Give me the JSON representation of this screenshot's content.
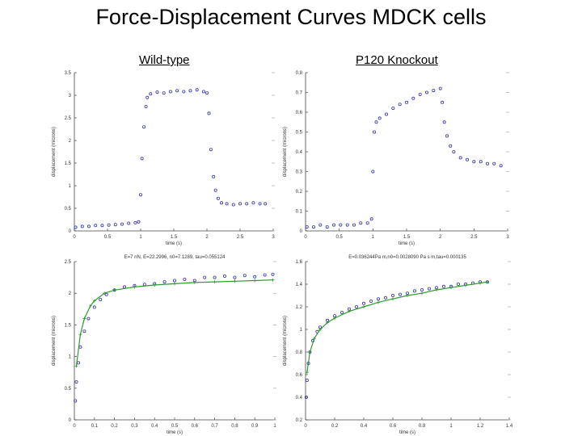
{
  "page": {
    "title": "Force-Displacement Curves MDCK cells",
    "subtitle_left": "Wild-type",
    "subtitle_right": "P120 Knockout"
  },
  "colors": {
    "data_points": "#3333aa",
    "fit_line": "#2e9a2e",
    "axis": "#444444"
  },
  "chart_data": [
    {
      "id": "wt-step",
      "type": "scatter",
      "xlabel": "time (s)",
      "ylabel": "displacement (microns)",
      "title": "",
      "xlim": [
        0,
        3
      ],
      "ylim": [
        0,
        3.5
      ],
      "xticks": [
        "0",
        "0.5",
        "1",
        "1.5",
        "2",
        "2.5",
        "3"
      ],
      "yticks": [
        "0",
        "0.5",
        "1",
        "1.5",
        "2",
        "2.5",
        "3",
        "3.5"
      ],
      "series": [
        {
          "x": [
            0.02,
            0.12,
            0.22,
            0.32,
            0.42,
            0.52,
            0.62,
            0.72,
            0.82,
            0.92,
            0.97,
            1.0,
            1.02,
            1.05,
            1.08,
            1.1,
            1.15,
            1.25,
            1.35,
            1.45,
            1.55,
            1.65,
            1.75,
            1.85,
            1.95,
            2.0,
            2.03,
            2.06,
            2.1,
            2.13,
            2.17,
            2.22,
            2.3,
            2.4,
            2.5,
            2.6,
            2.7,
            2.8,
            2.88
          ],
          "y": [
            0.08,
            0.1,
            0.1,
            0.12,
            0.12,
            0.13,
            0.14,
            0.15,
            0.17,
            0.18,
            0.2,
            0.8,
            1.6,
            2.3,
            2.75,
            2.95,
            3.03,
            3.07,
            3.05,
            3.08,
            3.1,
            3.08,
            3.1,
            3.12,
            3.08,
            3.05,
            2.6,
            1.8,
            1.2,
            0.9,
            0.72,
            0.62,
            0.6,
            0.58,
            0.6,
            0.6,
            0.62,
            0.6,
            0.6
          ]
        }
      ]
    },
    {
      "id": "ko-step",
      "type": "scatter",
      "xlabel": "time (s)",
      "ylabel": "displacement (microns)",
      "title": "",
      "xlim": [
        0,
        3
      ],
      "ylim": [
        0,
        0.8
      ],
      "xticks": [
        "0",
        "0.5",
        "1",
        "1.5",
        "2",
        "2.5",
        "3"
      ],
      "yticks": [
        "0",
        "0.1",
        "0.2",
        "0.3",
        "0.4",
        "0.5",
        "0.6",
        "0.7",
        "0.8"
      ],
      "series": [
        {
          "x": [
            0.02,
            0.12,
            0.22,
            0.32,
            0.42,
            0.52,
            0.62,
            0.72,
            0.82,
            0.92,
            0.98,
            1.0,
            1.02,
            1.05,
            1.1,
            1.2,
            1.3,
            1.4,
            1.5,
            1.6,
            1.7,
            1.8,
            1.9,
            2.0,
            2.03,
            2.06,
            2.1,
            2.15,
            2.2,
            2.3,
            2.4,
            2.5,
            2.6,
            2.7,
            2.8,
            2.9
          ],
          "y": [
            0.02,
            0.02,
            0.03,
            0.02,
            0.03,
            0.03,
            0.03,
            0.03,
            0.04,
            0.04,
            0.06,
            0.3,
            0.5,
            0.55,
            0.57,
            0.59,
            0.62,
            0.64,
            0.65,
            0.67,
            0.69,
            0.7,
            0.71,
            0.72,
            0.65,
            0.55,
            0.48,
            0.43,
            0.4,
            0.37,
            0.36,
            0.35,
            0.35,
            0.34,
            0.34,
            0.33
          ]
        }
      ]
    },
    {
      "id": "wt-fit",
      "type": "scatter",
      "title": "E=7 nN, E=22.2996, n0=7.1289, tau=0.055124",
      "xlabel": "time (s)",
      "ylabel": "displacement (microns)",
      "xlim": [
        0,
        1
      ],
      "ylim": [
        0,
        2.5
      ],
      "xticks": [
        "0",
        "0.1",
        "0.2",
        "0.3",
        "0.4",
        "0.5",
        "0.6",
        "0.7",
        "0.8",
        "0.9",
        "1"
      ],
      "yticks": [
        "0",
        "0.5",
        "1",
        "1.5",
        "2",
        "2.5"
      ],
      "series": [
        {
          "name": "data",
          "x": [
            0.005,
            0.01,
            0.02,
            0.03,
            0.05,
            0.07,
            0.1,
            0.13,
            0.16,
            0.2,
            0.25,
            0.3,
            0.35,
            0.4,
            0.45,
            0.5,
            0.55,
            0.6,
            0.65,
            0.7,
            0.75,
            0.8,
            0.85,
            0.9,
            0.95,
            0.99
          ],
          "y": [
            0.3,
            0.6,
            0.9,
            1.15,
            1.4,
            1.6,
            1.78,
            1.9,
            1.98,
            2.05,
            2.1,
            2.12,
            2.14,
            2.15,
            2.18,
            2.2,
            2.22,
            2.2,
            2.25,
            2.25,
            2.27,
            2.25,
            2.28,
            2.26,
            2.29,
            2.3
          ]
        },
        {
          "name": "fit",
          "x": [
            0.01,
            0.03,
            0.05,
            0.08,
            0.1,
            0.15,
            0.2,
            0.3,
            0.4,
            0.5,
            0.6,
            0.7,
            0.8,
            0.9,
            0.99
          ],
          "y": [
            0.85,
            1.35,
            1.6,
            1.8,
            1.88,
            2.0,
            2.05,
            2.1,
            2.13,
            2.15,
            2.17,
            2.18,
            2.19,
            2.2,
            2.21
          ]
        }
      ]
    },
    {
      "id": "ko-fit",
      "type": "scatter",
      "title": "E=0.036244Pa m,n0=0.0028090 Pa s m,tau=0.000135",
      "xlabel": "time (s)",
      "ylabel": "displacement (microns)",
      "xlim": [
        0,
        1.4
      ],
      "ylim": [
        0.2,
        1.6
      ],
      "xticks": [
        "0",
        "0.2",
        "0.4",
        "0.6",
        "0.8",
        "1",
        "1.2",
        "1.4"
      ],
      "yticks": [
        "0.2",
        "0.4",
        "0.6",
        "0.8",
        "1",
        "1.2",
        "1.4",
        "1.6"
      ],
      "series": [
        {
          "name": "data",
          "x": [
            0.005,
            0.01,
            0.02,
            0.03,
            0.05,
            0.08,
            0.1,
            0.15,
            0.2,
            0.25,
            0.3,
            0.35,
            0.4,
            0.45,
            0.5,
            0.55,
            0.6,
            0.65,
            0.7,
            0.75,
            0.8,
            0.85,
            0.9,
            0.95,
            1.0,
            1.05,
            1.1,
            1.15,
            1.2,
            1.25
          ],
          "y": [
            0.4,
            0.55,
            0.7,
            0.8,
            0.9,
            0.98,
            1.02,
            1.08,
            1.12,
            1.15,
            1.18,
            1.2,
            1.23,
            1.25,
            1.27,
            1.28,
            1.3,
            1.31,
            1.32,
            1.34,
            1.35,
            1.36,
            1.37,
            1.38,
            1.38,
            1.4,
            1.4,
            1.41,
            1.42,
            1.42
          ]
        },
        {
          "name": "fit",
          "x": [
            0.01,
            0.03,
            0.06,
            0.1,
            0.15,
            0.2,
            0.3,
            0.4,
            0.5,
            0.6,
            0.7,
            0.8,
            0.9,
            1.0,
            1.1,
            1.2,
            1.25
          ],
          "y": [
            0.62,
            0.8,
            0.92,
            1.0,
            1.06,
            1.1,
            1.16,
            1.2,
            1.24,
            1.27,
            1.3,
            1.32,
            1.35,
            1.37,
            1.39,
            1.41,
            1.42
          ]
        }
      ]
    }
  ]
}
